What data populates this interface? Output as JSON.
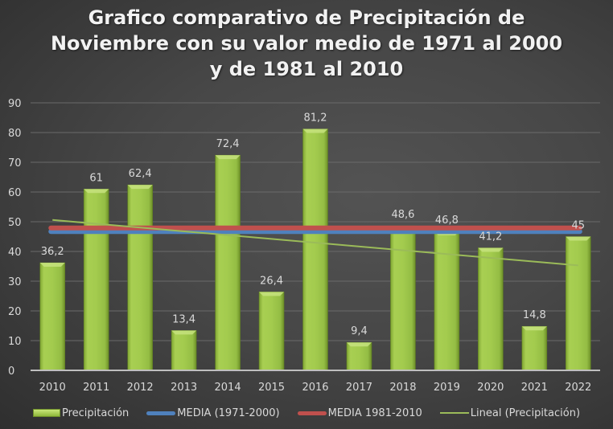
{
  "chart_data": {
    "type": "bar",
    "title_lines": [
      "Grafico comparativo de Precipitación de",
      "Noviembre con su valor medio de 1971 al 2000",
      "y de 1981 al 2010"
    ],
    "categories": [
      "2010",
      "2011",
      "2012",
      "2013",
      "2014",
      "2015",
      "2016",
      "2017",
      "2018",
      "2019",
      "2020",
      "2021",
      "2022"
    ],
    "series": [
      {
        "name": "Precipitación",
        "type": "bar",
        "values": [
          36.2,
          61,
          62.4,
          13.4,
          72.4,
          26.4,
          81.2,
          9.4,
          48.6,
          46.8,
          41.2,
          14.8,
          45
        ],
        "labels": [
          "36,2",
          "61",
          "62,4",
          "13,4",
          "72,4",
          "26,4",
          "81,2",
          "9,4",
          "48,6",
          "46,8",
          "41,2",
          "14,8",
          "45"
        ],
        "color": "#9bbb59"
      },
      {
        "name": "MEDIA (1971-2000)",
        "type": "line",
        "values": [
          46.7,
          46.7,
          46.7,
          46.7,
          46.7,
          46.7,
          46.7,
          46.7,
          46.7,
          46.7,
          46.7,
          46.7,
          46.7
        ],
        "color": "#4f81bd"
      },
      {
        "name": "MEDIA 1981-2010",
        "type": "line",
        "values": [
          47.9,
          47.9,
          47.9,
          47.9,
          47.9,
          47.9,
          47.9,
          47.9,
          47.9,
          47.9,
          47.9,
          47.9,
          47.9
        ],
        "color": "#c0504d"
      },
      {
        "name": "Lineal (Precipitación)",
        "type": "trendline",
        "start": 50.6,
        "end": 35.3,
        "color": "#9bbb59"
      }
    ],
    "ylim": [
      0,
      90
    ],
    "yticks": [
      0,
      10,
      20,
      30,
      40,
      50,
      60,
      70,
      80,
      90
    ],
    "xlabel": "",
    "ylabel": "",
    "grid": true,
    "legend_position": "bottom"
  }
}
